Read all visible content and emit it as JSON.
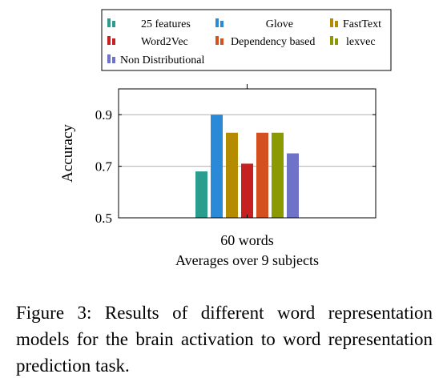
{
  "chart_data": {
    "type": "bar",
    "categories": [
      "60 words"
    ],
    "xlabel": "Averages over 9 subjects",
    "ylabel": "Accuracy",
    "ylim": [
      0.5,
      1.0
    ],
    "yticks": [
      "0.5",
      "0.7",
      "0.9"
    ],
    "ytick_values": [
      0.5,
      0.7,
      0.9
    ],
    "grid": "horizontal lines at y ticks",
    "legend_position": "top, above plot",
    "series": [
      {
        "name": "25 features",
        "values": [
          0.68
        ],
        "color": "#2a9d8f"
      },
      {
        "name": "Glove",
        "values": [
          0.9
        ],
        "color": "#2b8ad8"
      },
      {
        "name": "FastText",
        "values": [
          0.83
        ],
        "color": "#b58b00"
      },
      {
        "name": "Word2Vec",
        "values": [
          0.71
        ],
        "color": "#c62020"
      },
      {
        "name": "Dependency based",
        "values": [
          0.83
        ],
        "color": "#d4501e"
      },
      {
        "name": "lexvec",
        "values": [
          0.83
        ],
        "color": "#8a9a00"
      },
      {
        "name": "Non Distributional",
        "values": [
          0.75
        ],
        "color": "#6f72c9"
      }
    ]
  },
  "caption": "Figure 3: Results of different word representation models for the brain activation to word representation prediction task."
}
